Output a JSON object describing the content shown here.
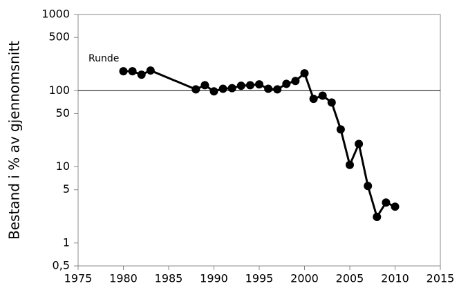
{
  "chart_data": {
    "type": "line",
    "annotation": "Runde",
    "ylabel": "Bestand i % av gjennomsnitt",
    "x": [
      1980,
      1981,
      1982,
      1983,
      1988,
      1989,
      1990,
      1991,
      1992,
      1993,
      1994,
      1995,
      1996,
      1997,
      1998,
      1999,
      2000,
      2001,
      2002,
      2003,
      2004,
      2005,
      2006,
      2007,
      2008,
      2009,
      2010
    ],
    "series": [
      {
        "name": "Runde",
        "color": "#000000",
        "values": [
          180,
          180,
          162,
          184,
          104,
          118,
          98,
          106,
          108,
          116,
          118,
          121,
          106,
          104,
          123,
          134,
          169,
          78,
          86,
          70,
          31,
          10.6,
          20,
          5.6,
          2.2,
          3.4,
          3.0
        ]
      }
    ],
    "xlim": [
      1975,
      2015
    ],
    "xticks": [
      1975,
      1980,
      1985,
      1990,
      1995,
      2000,
      2005,
      2010,
      2015
    ],
    "ylim": [
      0.5,
      1000
    ],
    "yticks": [
      1000,
      500,
      100,
      50,
      10,
      5,
      1,
      {
        "value": 0.5,
        "label": "0,5"
      }
    ],
    "log_y": true,
    "reference_line": 100
  }
}
